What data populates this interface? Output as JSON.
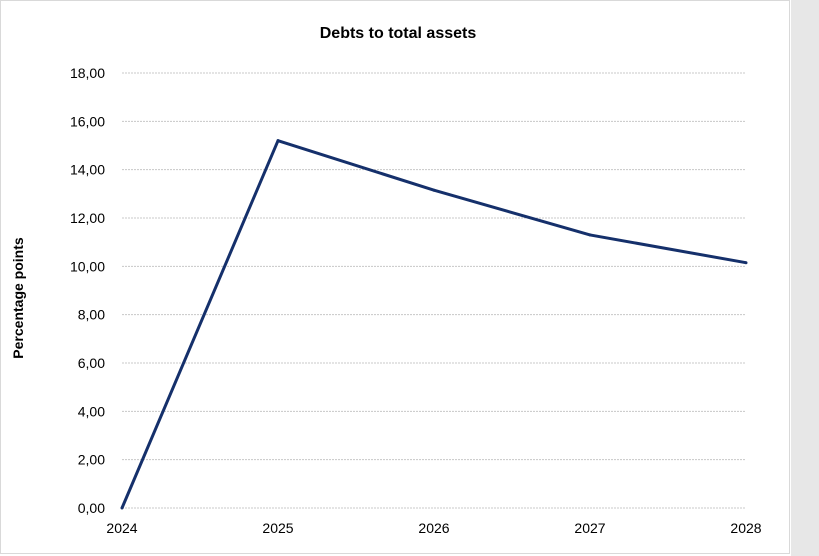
{
  "chart_data": {
    "type": "line",
    "title": "Debts to total assets",
    "xlabel": "",
    "ylabel": "Percentage points",
    "categories": [
      "2024",
      "2025",
      "2026",
      "2027",
      "2028"
    ],
    "series": [
      {
        "values": [
          0.0,
          15.2,
          13.15,
          11.3,
          10.15
        ],
        "color": "#15306b"
      }
    ],
    "ylim": [
      0,
      18
    ],
    "yticks": [
      "0,00",
      "2,00",
      "4,00",
      "6,00",
      "8,00",
      "10,00",
      "12,00",
      "14,00",
      "16,00",
      "18,00"
    ],
    "grid": true,
    "legend": "none"
  }
}
